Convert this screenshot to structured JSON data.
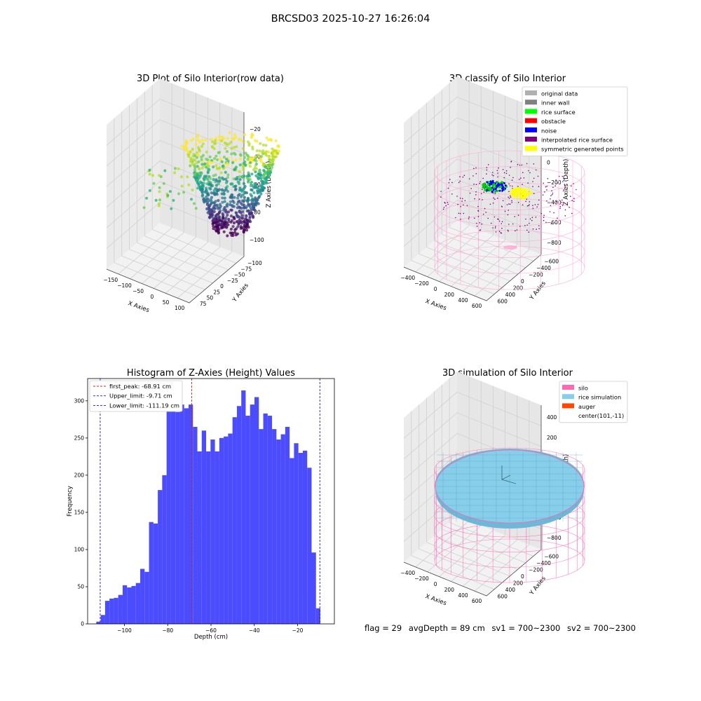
{
  "suptitle": "BRCSD03 2025-10-27 16:26:04",
  "status_line": [
    "flag = 29",
    "avgDepth = 89 cm",
    "sv1 = 700~2300",
    "sv2 = 700~2300"
  ],
  "colors": {
    "histogram_bar": "#4c4cff",
    "first_peak_line": "#e41a1c",
    "limit_lines": "#1f1fbf",
    "silo_wire": "#ff69b4",
    "rice_simulation": "#87ceeb",
    "auger": "#ff4500"
  },
  "chart_data": [
    {
      "type": "scatter",
      "title": "3D Plot of Silo Interior(row data)",
      "xlabel": "X Axies",
      "ylabel": "Y Axies",
      "zlabel": "Z Axies (Depth)",
      "x_ticks": [
        "−150",
        "−100",
        "−50",
        "0",
        "50",
        "100"
      ],
      "y_ticks": [
        "75",
        "50",
        "25",
        "0",
        "−25",
        "−50",
        "−75",
        "−100"
      ],
      "z_ticks": [
        "−20",
        "−40",
        "−60",
        "−80",
        "−100"
      ],
      "colormap": "viridis"
    },
    {
      "type": "scatter",
      "title": "3D classify of Silo Interior",
      "xlabel": "X Axies",
      "ylabel": "Y Axies",
      "zlabel": "Z Axies (Depth)",
      "x_ticks": [
        "−400",
        "−200",
        "0",
        "200",
        "400",
        "600"
      ],
      "y_ticks": [
        "600",
        "400",
        "200",
        "0",
        "−200",
        "−400",
        "−600"
      ],
      "z_ticks": [
        "400",
        "200",
        "0",
        "−200",
        "−400",
        "−600",
        "−800"
      ],
      "legend": [
        {
          "label": "original data",
          "color": "#b0b0b0"
        },
        {
          "label": "inner wall",
          "color": "#808080"
        },
        {
          "label": "rice surface",
          "color": "#00ff00"
        },
        {
          "label": "obstacle",
          "color": "#ff0000"
        },
        {
          "label": "noise",
          "color": "#0000ff"
        },
        {
          "label": "interpolated rice surface",
          "color": "#800080"
        },
        {
          "label": "symmetric generated points",
          "color": "#ffff00"
        }
      ],
      "legend_loc": "upper right"
    },
    {
      "type": "bar",
      "title": "Histogram of Z-Axies (Height) Values",
      "xlabel": "Depth (cm)",
      "ylabel": "Frequency",
      "xlim": [
        -117,
        -3
      ],
      "ylim": [
        0,
        330
      ],
      "x_ticks": [
        -100,
        -80,
        -60,
        -40,
        -20
      ],
      "x_tick_labels": [
        "−100",
        "−80",
        "−60",
        "−40",
        "−20"
      ],
      "y_ticks": [
        0,
        50,
        100,
        150,
        200,
        250,
        300
      ],
      "bin_start": -113,
      "bin_width": 2.03,
      "values": [
        3,
        12,
        31,
        34,
        35,
        39,
        52,
        49,
        51,
        55,
        74,
        70,
        137,
        135,
        180,
        200,
        290,
        288,
        285,
        295,
        290,
        295,
        265,
        232,
        260,
        232,
        248,
        232,
        250,
        252,
        256,
        278,
        293,
        314,
        280,
        295,
        305,
        262,
        283,
        280,
        262,
        248,
        255,
        265,
        223,
        243,
        230,
        233,
        210,
        96,
        21
      ],
      "vlines": [
        {
          "label": "first_peak: -68.91 cm",
          "x": -68.91,
          "color": "#e41a1c"
        },
        {
          "label": "Upper_limit: -9.71 cm",
          "x": -9.71,
          "color": "#1f1fbf"
        },
        {
          "label": "Lower_limit: -111.19 cm",
          "x": -111.19,
          "color": "#1f1fbf"
        }
      ],
      "legend_loc": "upper left"
    },
    {
      "type": "surface",
      "title": "3D simulation of Silo Interior",
      "xlabel": "X Axies",
      "ylabel": "Y Axies",
      "zlabel": "Z Axies (Depth)",
      "x_ticks": [
        "−400",
        "−200",
        "0",
        "200",
        "400",
        "600"
      ],
      "y_ticks": [
        "600",
        "400",
        "200",
        "0",
        "−200",
        "−400",
        "−600"
      ],
      "z_ticks": [
        "400",
        "200",
        "0",
        "−200",
        "−400",
        "−600",
        "−800"
      ],
      "legend": [
        {
          "label": "silo",
          "color": "#ff69b4"
        },
        {
          "label": "rice simulation",
          "color": "#87ceeb"
        },
        {
          "label": "auger",
          "color": "#ff4500"
        },
        {
          "label": "center(101,-11)",
          "color": ""
        }
      ],
      "legend_loc": "upper right"
    }
  ]
}
